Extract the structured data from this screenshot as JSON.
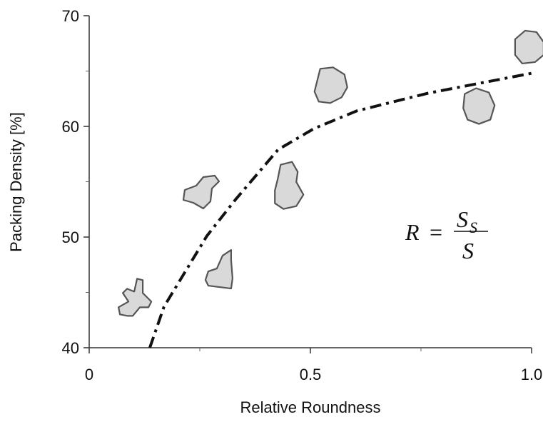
{
  "chart_data": {
    "type": "line",
    "x_label": "Relative Roundness",
    "y_label": "Packing Density [%]",
    "xlim": [
      0,
      1
    ],
    "ylim": [
      40,
      70
    ],
    "xticks": [
      0,
      0.5,
      {
        "value": 1,
        "label": "1.0"
      }
    ],
    "xminorticks": [
      0.25,
      0.75
    ],
    "yticks": [
      40,
      50,
      60,
      70
    ],
    "yminorticks": [
      45,
      55,
      65
    ],
    "series": [
      {
        "color": "#111111",
        "style": "dash-dot",
        "x": [
          0.137,
          0.169,
          0.266,
          0.331,
          0.427,
          0.508,
          0.605,
          0.766,
          1.0
        ],
        "values": [
          40,
          43.7,
          50.1,
          53.4,
          57.9,
          59.8,
          61.4,
          63.0,
          64.8
        ]
      }
    ],
    "particles": {
      "color": "#d9d9d9",
      "x": [
        0.105,
        0.258,
        0.295,
        0.452,
        0.548,
        0.881,
        0.995
      ],
      "values": [
        44.3,
        54.0,
        46.9,
        54.6,
        63.4,
        61.9,
        67.1
      ]
    },
    "annotation": {
      "lhs": "R",
      "eq": "=",
      "numerator": "S",
      "numerator_sub": "S",
      "denominator": "S"
    }
  }
}
